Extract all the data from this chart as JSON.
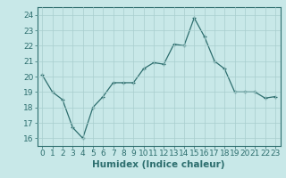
{
  "xlabel": "Humidex (Indice chaleur)",
  "x_values": [
    0,
    1,
    2,
    3,
    4,
    5,
    6,
    7,
    8,
    9,
    10,
    11,
    12,
    13,
    14,
    15,
    16,
    17,
    18,
    19,
    20,
    21,
    22,
    23
  ],
  "y_values": [
    20.1,
    19.0,
    18.5,
    16.7,
    16.0,
    18.0,
    18.7,
    19.6,
    19.6,
    19.6,
    20.5,
    20.9,
    20.8,
    22.1,
    22.0,
    23.8,
    22.6,
    21.0,
    20.5,
    19.0,
    19.0,
    19.0,
    18.6,
    18.7
  ],
  "ylim": [
    15.5,
    24.5
  ],
  "xlim": [
    -0.5,
    23.5
  ],
  "yticks": [
    16,
    17,
    18,
    19,
    20,
    21,
    22,
    23,
    24
  ],
  "xticks": [
    0,
    1,
    2,
    3,
    4,
    5,
    6,
    7,
    8,
    9,
    10,
    11,
    12,
    13,
    14,
    15,
    16,
    17,
    18,
    19,
    20,
    21,
    22,
    23
  ],
  "line_color": "#2d6e6e",
  "marker_color": "#2d6e6e",
  "bg_color": "#c8e8e8",
  "grid_color": "#a8cece",
  "text_color": "#2d6e6e",
  "axis_color": "#2d6e6e",
  "tick_font_size": 6.5,
  "label_font_size": 7.5
}
